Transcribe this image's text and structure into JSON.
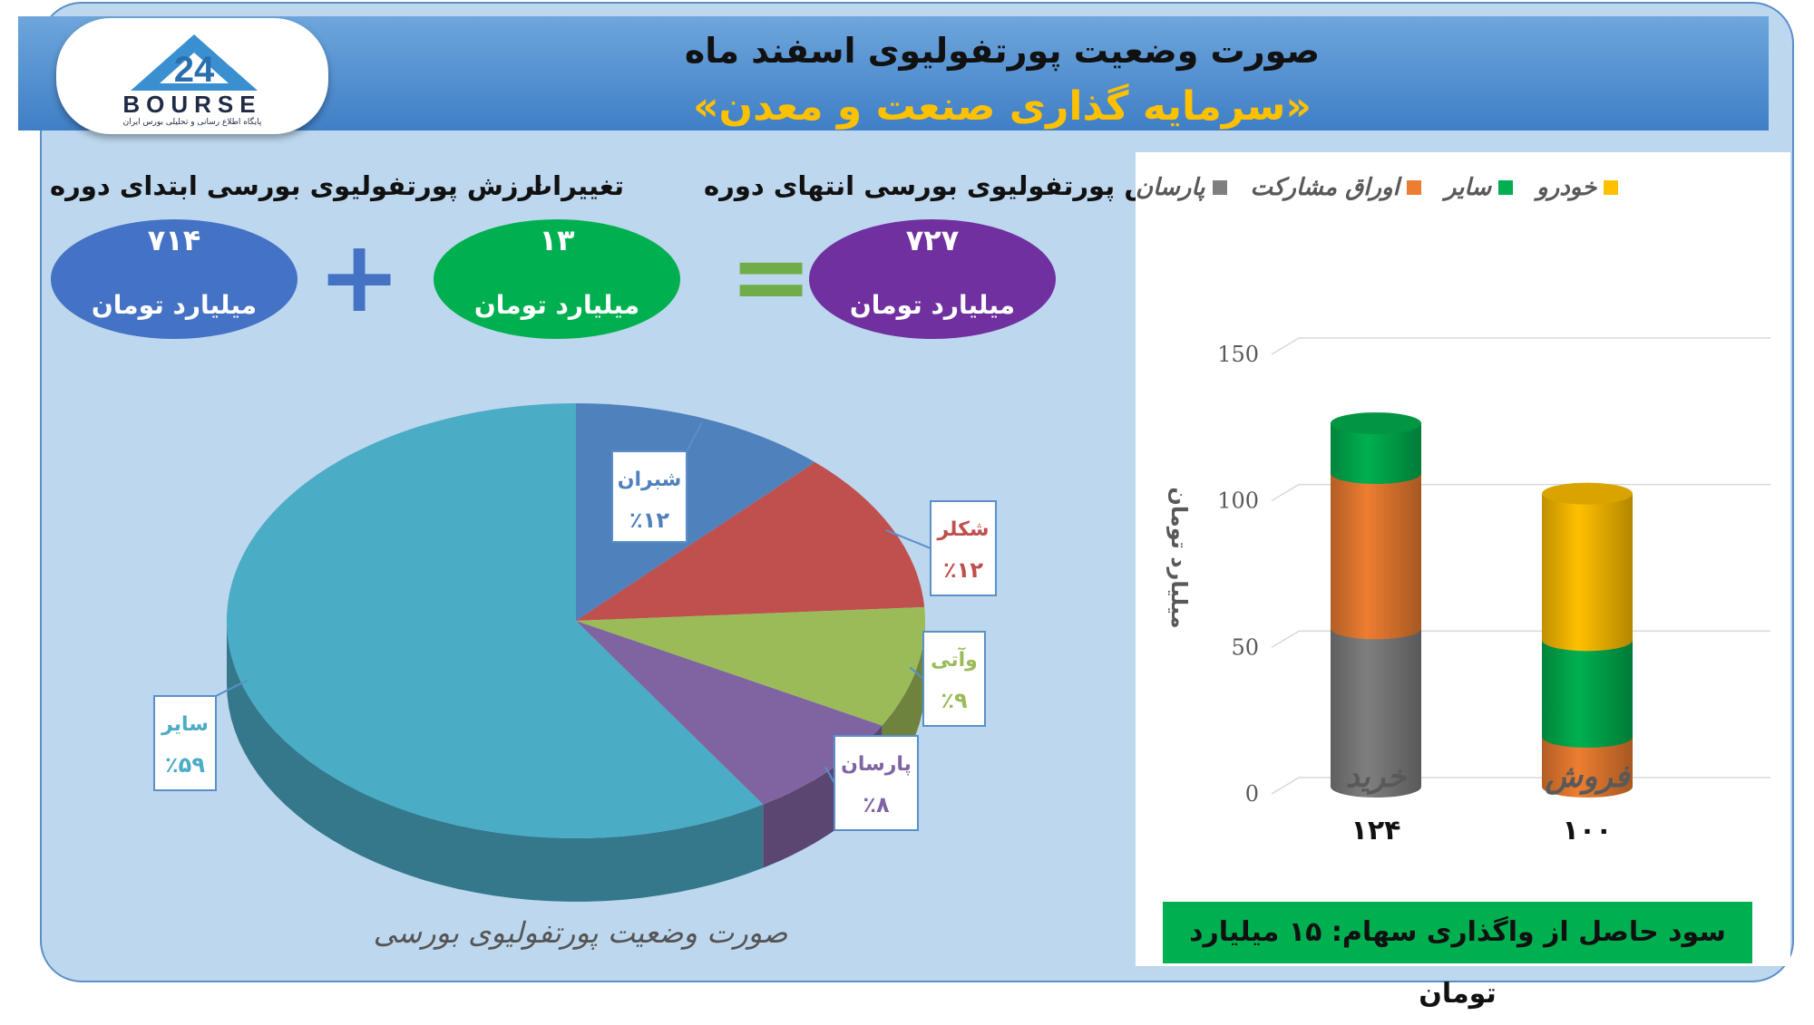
{
  "header": {
    "title": "صورت وضعیت پورتفولیوی اسفند ماه",
    "subtitle": "«سرمایه گذاری صنعت و معدن»"
  },
  "logo": {
    "text": "BOURSE",
    "tagline": "پایگاه اطلاع رسانی و تحلیلی بورس ایران"
  },
  "summary": {
    "start": {
      "label": "ارزش پورتفولیوی بورسی ابتدای دوره",
      "value": "۷۱۴",
      "unit": "میلیارد تومان",
      "color": "#4472c4"
    },
    "change": {
      "label": "تغییرات",
      "value": "۱۳",
      "unit": "میلیارد تومان",
      "color": "#00b050"
    },
    "end": {
      "label": "ارزش پورتفولیوی بورسی انتهای دوره",
      "value": "۷۲۷",
      "unit": "میلیارد تومان",
      "color": "#7030a0"
    },
    "plus_symbol": "+",
    "equals_symbol": "="
  },
  "profit_text": "سود حاصل از واگذاری سهام: ۱۵ میلیارد تومان",
  "chart_data": [
    {
      "type": "pie",
      "caption": "صورت وضعیت پورتفولیوی بورسی",
      "slices": [
        {
          "label": "شبران",
          "value": 12,
          "value_label": "٪۱۲",
          "color": "#4f81bd"
        },
        {
          "label": "شکلر",
          "value": 12,
          "value_label": "٪۱۲",
          "color": "#c0504d"
        },
        {
          "label": "وآتی",
          "value": 9,
          "value_label": "٪۹",
          "color": "#9bbb59"
        },
        {
          "label": "پارسان",
          "value": 8,
          "value_label": "٪۸",
          "color": "#8064a2"
        },
        {
          "label": "سایر",
          "value": 59,
          "value_label": "٪۵۹",
          "color": "#4bacc6"
        }
      ]
    },
    {
      "type": "bar",
      "stacked": true,
      "ylabel": "میلیارد تومان",
      "ylim": [
        0,
        150
      ],
      "yticks": [
        0,
        50,
        100,
        150
      ],
      "categories": [
        "خرید",
        "فروش"
      ],
      "category_totals": [
        "۱۲۴",
        "۱۰۰"
      ],
      "series": [
        {
          "name": "پارسان",
          "color": "#7f7f7f",
          "values": [
            54,
            0
          ]
        },
        {
          "name": "اوراق مشارکت",
          "color": "#ed7d31",
          "values": [
            53,
            17
          ]
        },
        {
          "name": "سایر",
          "color": "#00b050",
          "values": [
            17,
            33
          ]
        },
        {
          "name": "خودرو",
          "color": "#ffc000",
          "values": [
            0,
            50
          ]
        }
      ],
      "legend_order": [
        "خودرو",
        "سایر",
        "اوراق مشارکت",
        "پارسان"
      ],
      "legend_position": "top"
    }
  ]
}
